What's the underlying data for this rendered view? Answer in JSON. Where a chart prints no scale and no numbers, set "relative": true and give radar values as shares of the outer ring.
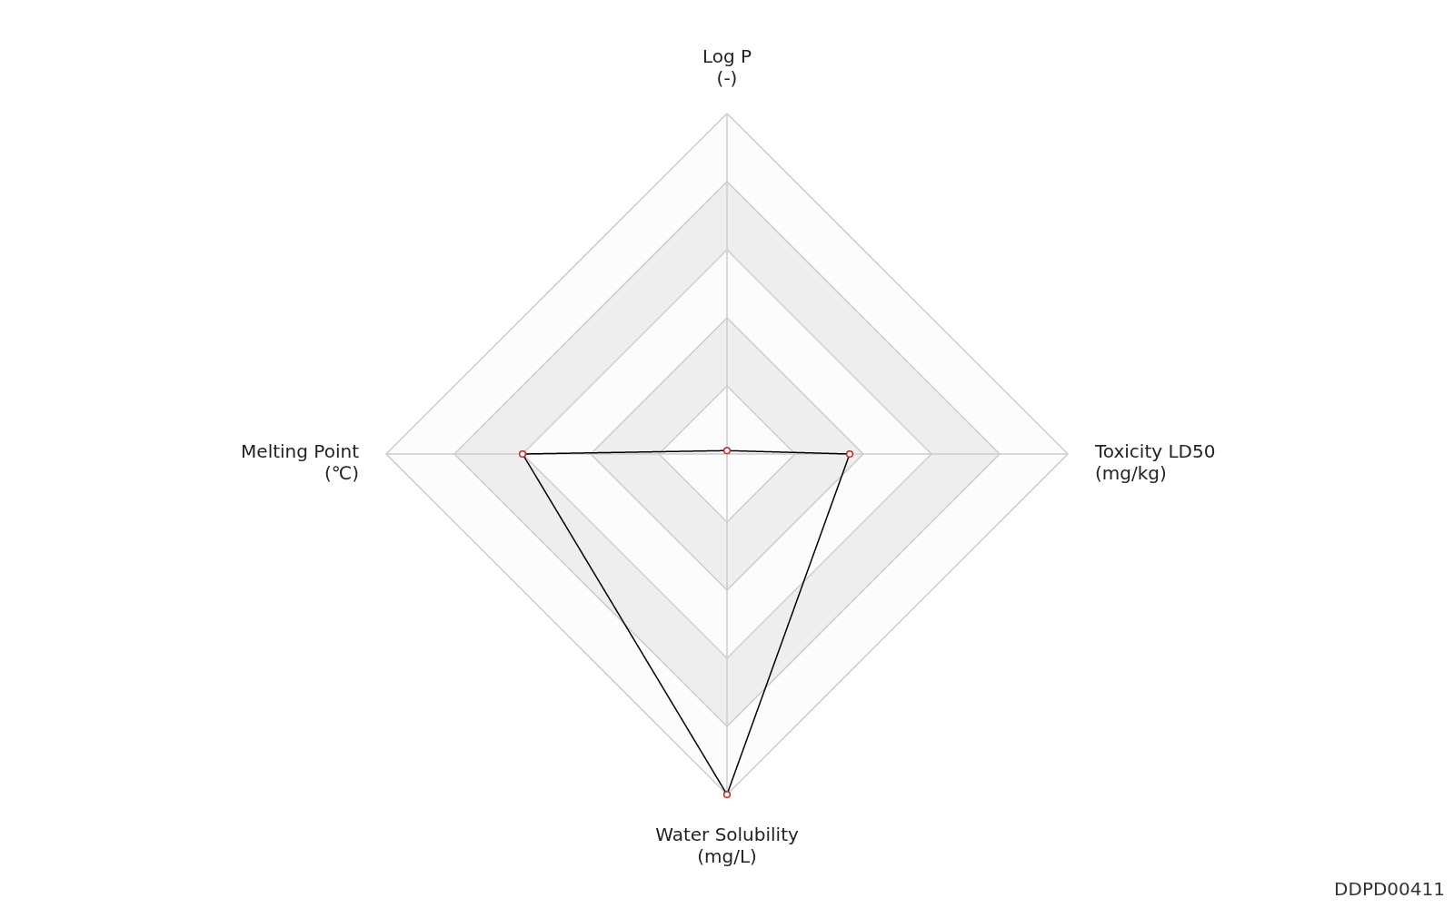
{
  "chart_data": {
    "type": "radar",
    "relative": true,
    "grid": true,
    "marker": "circle",
    "line_style": "solid",
    "categories": [
      "Log P\n(-)",
      "Toxicity LD50\n(mg/kg)",
      "Water Solubility\n(mg/L)",
      "Melting Point\n(℃)"
    ],
    "series": [
      {
        "color": "#000000",
        "values": [
          0.01,
          0.36,
          1.0,
          0.6
        ]
      }
    ],
    "annotations": [
      "DDPD00411"
    ]
  }
}
